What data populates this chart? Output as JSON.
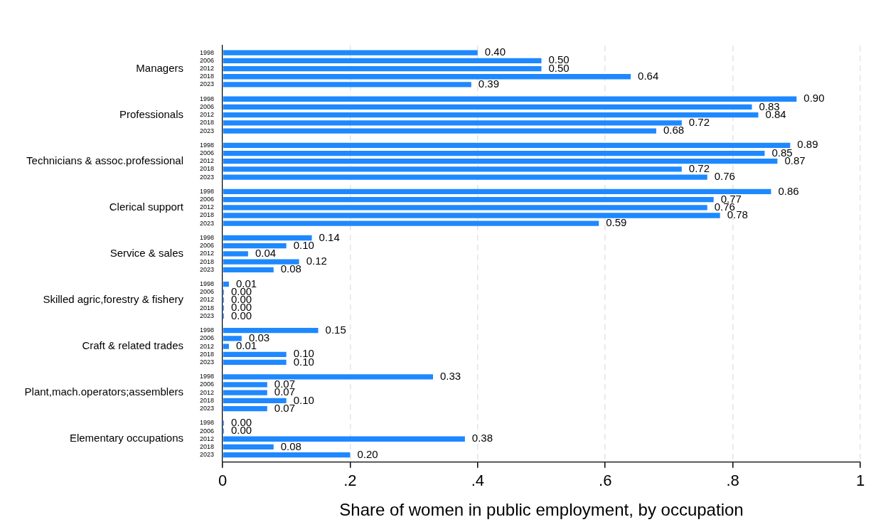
{
  "chart_data": {
    "type": "bar",
    "orientation": "horizontal",
    "xlabel": "Share of women in public employment, by occupation",
    "categories": [
      "Managers",
      "Professionals",
      "Technicians & assoc.professional",
      "Clerical support",
      "Service & sales",
      "Skilled agric,forestry & fishery",
      "Craft & related trades",
      "Plant,mach.operators;assemblers",
      "Elementary occupations"
    ],
    "series": [
      {
        "name": "1998",
        "color": "#1e88ff",
        "values": [
          0.4,
          0.9,
          0.89,
          0.86,
          0.14,
          0.01,
          0.15,
          0.33,
          0.0
        ],
        "value_labels": [
          "0.40",
          "0.90",
          "0.89",
          "0.86",
          "0.14",
          "0.01",
          "0.15",
          "0.33",
          "0.00"
        ]
      },
      {
        "name": "2006",
        "color": "#1e88ff",
        "values": [
          0.5,
          0.83,
          0.85,
          0.77,
          0.1,
          0.0,
          0.03,
          0.07,
          0.0
        ],
        "value_labels": [
          "0.50",
          "0.83",
          "0.85",
          "0.77",
          "0.10",
          "0.00",
          "0.03",
          "0.07",
          "0.00"
        ]
      },
      {
        "name": "2012",
        "color": "#1e88ff",
        "values": [
          0.5,
          0.84,
          0.87,
          0.76,
          0.04,
          0.0,
          0.01,
          0.07,
          0.38
        ],
        "value_labels": [
          "0.50",
          "0.84",
          "0.87",
          "0.76",
          "0.04",
          "0.00",
          "0.01",
          "0.07",
          "0.38"
        ]
      },
      {
        "name": "2018",
        "color": "#1e88ff",
        "values": [
          0.64,
          0.72,
          0.72,
          0.78,
          0.12,
          0.0,
          0.1,
          0.1,
          0.08
        ],
        "value_labels": [
          "0.64",
          "0.72",
          "0.72",
          "0.78",
          "0.12",
          "0.00",
          "0.10",
          "0.10",
          "0.08"
        ]
      },
      {
        "name": "2023",
        "color": "#1e88ff",
        "values": [
          0.39,
          0.68,
          0.76,
          0.59,
          0.08,
          0.0,
          0.1,
          0.07,
          0.2
        ],
        "value_labels": [
          "0.39",
          "0.68",
          "0.76",
          "0.59",
          "0.08",
          "0.00",
          "0.10",
          "0.07",
          "0.20"
        ]
      }
    ],
    "xlim": [
      0,
      1
    ],
    "xticks": [
      0,
      {
        "value": 0.2,
        "label": ".2"
      },
      {
        "value": 0.4,
        "label": ".4"
      },
      {
        "value": 0.6,
        "label": ".6"
      },
      {
        "value": 0.8,
        "label": ".8"
      },
      1
    ],
    "grid": "x",
    "legend": false
  }
}
